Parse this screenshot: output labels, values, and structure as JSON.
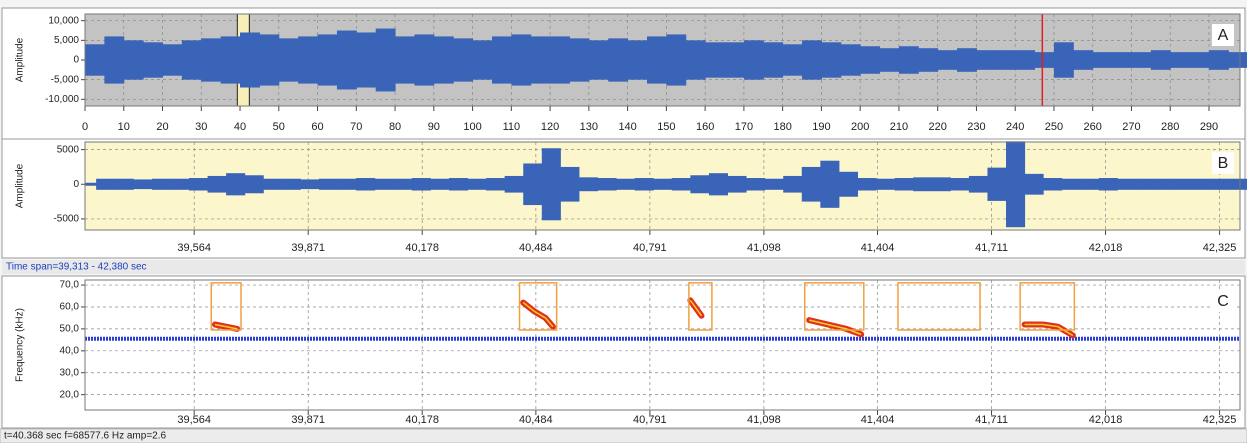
{
  "chart_data": [
    {
      "type": "waveform",
      "label": "A",
      "y_label": "Amplitude",
      "background": "#c3c3c3",
      "color": "#3a64b8",
      "grid": true,
      "xlim": [
        0,
        298
      ],
      "ylim": [
        -11700,
        11700
      ],
      "xticks": [
        0,
        10,
        20,
        30,
        40,
        50,
        60,
        70,
        80,
        90,
        100,
        110,
        120,
        130,
        140,
        150,
        160,
        170,
        180,
        190,
        200,
        210,
        220,
        230,
        240,
        250,
        260,
        270,
        280,
        290
      ],
      "yticks": [
        {
          "value": 10000,
          "label": "10,000"
        },
        {
          "value": 5000,
          "label": "5,000"
        },
        0,
        {
          "value": -5000,
          "label": "-5,000"
        },
        {
          "value": -10000,
          "label": "-10,000"
        }
      ],
      "x": [
        0,
        5,
        10,
        15,
        20,
        25,
        30,
        35,
        40,
        45,
        50,
        55,
        60,
        65,
        70,
        75,
        80,
        85,
        90,
        95,
        100,
        105,
        110,
        115,
        120,
        125,
        130,
        135,
        140,
        145,
        150,
        155,
        160,
        165,
        170,
        175,
        180,
        185,
        190,
        195,
        200,
        205,
        210,
        215,
        220,
        225,
        230,
        235,
        240,
        245,
        250,
        255,
        260,
        265,
        270,
        275,
        280,
        285,
        290,
        295
      ],
      "values": [
        4000,
        6000,
        5000,
        4500,
        4000,
        5000,
        5500,
        6000,
        7000,
        6500,
        5500,
        6000,
        6500,
        7500,
        7000,
        8000,
        6000,
        6500,
        6000,
        5500,
        5000,
        6000,
        6500,
        6000,
        6000,
        5500,
        5000,
        5500,
        5000,
        6000,
        6500,
        5000,
        4500,
        4500,
        5000,
        4500,
        4000,
        5000,
        4500,
        4000,
        3500,
        3000,
        3500,
        3000,
        2500,
        3000,
        2500,
        2500,
        2500,
        2000,
        4500,
        2500,
        2000,
        2000,
        2000,
        2500,
        2000,
        2000,
        2500,
        2000
      ],
      "selection": [
        39.3,
        42.4
      ],
      "selection_color": "#f7efb8",
      "cursor": 247,
      "cursor_color": "#e02020"
    },
    {
      "type": "waveform",
      "label": "B",
      "y_label": "Amplitude",
      "background": "#fbf6cc",
      "color": "#3a64b8",
      "grid": true,
      "xlim": [
        39.27,
        42.38
      ],
      "ylim": [
        -6600,
        6100
      ],
      "xticks": [
        {
          "value": 39.564,
          "label": "39,564"
        },
        {
          "value": 39.871,
          "label": "39,871"
        },
        {
          "value": 40.178,
          "label": "40,178"
        },
        {
          "value": 40.484,
          "label": "40,484"
        },
        {
          "value": 40.791,
          "label": "40,791"
        },
        {
          "value": 41.098,
          "label": "41,098"
        },
        {
          "value": 41.404,
          "label": "41,404"
        },
        {
          "value": 41.711,
          "label": "41,711"
        },
        {
          "value": 42.018,
          "label": "42,018"
        },
        {
          "value": 42.325,
          "label": "42,325"
        }
      ],
      "yticks": [
        5000,
        0,
        -5000
      ],
      "x": [
        39.3,
        39.35,
        39.4,
        39.45,
        39.5,
        39.55,
        39.6,
        39.65,
        39.7,
        39.75,
        39.8,
        39.85,
        39.9,
        39.95,
        40.0,
        40.05,
        40.1,
        40.15,
        40.2,
        40.25,
        40.3,
        40.35,
        40.4,
        40.45,
        40.5,
        40.55,
        40.6,
        40.65,
        40.7,
        40.75,
        40.8,
        40.85,
        40.9,
        40.95,
        41.0,
        41.05,
        41.1,
        41.15,
        41.2,
        41.25,
        41.3,
        41.35,
        41.4,
        41.45,
        41.5,
        41.55,
        41.6,
        41.65,
        41.7,
        41.75,
        41.8,
        41.85,
        41.9,
        41.95,
        42.0,
        42.05,
        42.1,
        42.15,
        42.2,
        42.25,
        42.3,
        42.35
      ],
      "values": [
        800,
        800,
        700,
        800,
        800,
        900,
        1200,
        1600,
        1300,
        800,
        800,
        700,
        800,
        800,
        900,
        800,
        800,
        900,
        800,
        900,
        800,
        900,
        1200,
        3000,
        5200,
        2500,
        1000,
        900,
        800,
        900,
        800,
        900,
        1300,
        1600,
        1200,
        900,
        800,
        1200,
        2500,
        3400,
        1800,
        900,
        800,
        900,
        1000,
        1000,
        900,
        1200,
        2400,
        6200,
        1500,
        900,
        800,
        800,
        900,
        800,
        800,
        800,
        800,
        800,
        800,
        800
      ]
    },
    {
      "type": "spectrogram",
      "label": "C",
      "y_label": "Frequency (kHz)",
      "background": "#ffffff",
      "grid": true,
      "xlim": [
        39.27,
        42.38
      ],
      "ylim": [
        13,
        72.3
      ],
      "xticks": [
        {
          "value": 39.564,
          "label": "39,564"
        },
        {
          "value": 39.871,
          "label": "39,871"
        },
        {
          "value": 40.178,
          "label": "40,178"
        },
        {
          "value": 40.484,
          "label": "40,484"
        },
        {
          "value": 40.791,
          "label": "40,791"
        },
        {
          "value": 41.098,
          "label": "41,098"
        },
        {
          "value": 41.404,
          "label": "41,404"
        },
        {
          "value": 41.711,
          "label": "41,711"
        },
        {
          "value": 42.018,
          "label": "42,018"
        },
        {
          "value": 42.325,
          "label": "42,325"
        }
      ],
      "yticks": [
        {
          "value": 70,
          "label": "70,0"
        },
        {
          "value": 60,
          "label": "60,0"
        },
        {
          "value": 50,
          "label": "50,0"
        },
        {
          "value": 40,
          "label": "40,0"
        },
        {
          "value": 30,
          "label": "30,0"
        },
        {
          "value": 20,
          "label": "20,0"
        }
      ],
      "band": 45.5,
      "band_color": "#2a3fd0",
      "box_color": "#f0a040",
      "call_color": "#e0301e",
      "call_core_color": "#f5d020",
      "boxes": [
        {
          "t": [
            39.61,
            39.69
          ],
          "f": [
            49.5,
            71
          ]
        },
        {
          "t": [
            40.44,
            40.54
          ],
          "f": [
            49.5,
            71
          ]
        },
        {
          "t": [
            40.896,
            40.958
          ],
          "f": [
            49.5,
            71
          ]
        },
        {
          "t": [
            41.208,
            41.367
          ],
          "f": [
            49.5,
            71
          ]
        },
        {
          "t": [
            41.459,
            41.68
          ],
          "f": [
            49.5,
            71
          ]
        },
        {
          "t": [
            41.788,
            41.934
          ],
          "f": [
            49.5,
            71
          ]
        }
      ],
      "calls": [
        {
          "t": [
            39.62,
            39.68
          ],
          "f": [
            52,
            50
          ]
        },
        {
          "t": [
            40.45,
            40.48,
            40.51,
            40.53
          ],
          "f": [
            62,
            58,
            55,
            51
          ]
        },
        {
          "t": [
            40.9,
            40.93
          ],
          "f": [
            63,
            56
          ]
        },
        {
          "t": [
            41.22,
            41.27,
            41.32,
            41.36
          ],
          "f": [
            54,
            52,
            50,
            47.5
          ]
        },
        {
          "t": [
            41.8,
            41.85,
            41.89,
            41.93
          ],
          "f": [
            52,
            52,
            51,
            47
          ]
        }
      ]
    }
  ],
  "time_span": "Time span=39,313 - 42,380 sec",
  "status": "t=40.368 sec  f=68577.6 Hz  amp=2.6"
}
